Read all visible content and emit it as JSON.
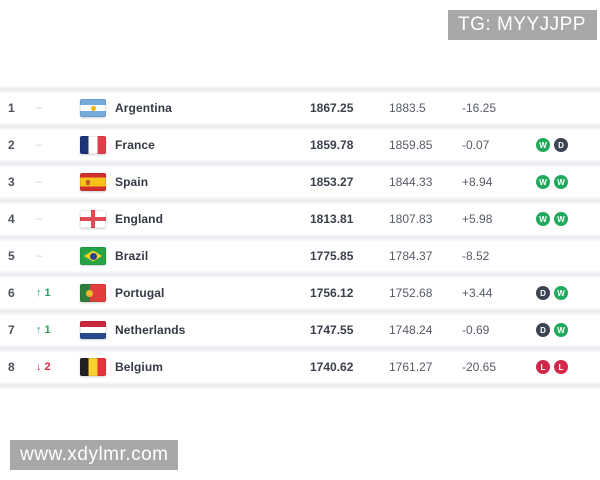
{
  "watermarks": {
    "top": "TG: MYYJJPP",
    "bottom": "www.xdylmr.com"
  },
  "colors": {
    "badge_win": "#22a95e",
    "badge_draw": "#3c4353",
    "badge_loss": "#d2294b",
    "move_up": "#27a05c",
    "move_down": "#cc2b47",
    "watermark_bg": "#a8a8a8"
  },
  "table": {
    "move_symbols": {
      "up": "↑",
      "down": "↓",
      "same": "–"
    },
    "rows": [
      {
        "rank": "1",
        "move": "same",
        "move_value": "",
        "flag": "argentina",
        "country": "Argentina",
        "points": "1867.25",
        "prev_points": "1883.5",
        "change": "-16.25",
        "form": []
      },
      {
        "rank": "2",
        "move": "same",
        "move_value": "",
        "flag": "france",
        "country": "France",
        "points": "1859.78",
        "prev_points": "1859.85",
        "change": "-0.07",
        "form": [
          "W",
          "D"
        ]
      },
      {
        "rank": "3",
        "move": "same",
        "move_value": "",
        "flag": "spain",
        "country": "Spain",
        "points": "1853.27",
        "prev_points": "1844.33",
        "change": "+8.94",
        "form": [
          "W",
          "W"
        ]
      },
      {
        "rank": "4",
        "move": "same",
        "move_value": "",
        "flag": "england",
        "country": "England",
        "points": "1813.81",
        "prev_points": "1807.83",
        "change": "+5.98",
        "form": [
          "W",
          "W"
        ]
      },
      {
        "rank": "5",
        "move": "same",
        "move_value": "",
        "flag": "brazil",
        "country": "Brazil",
        "points": "1775.85",
        "prev_points": "1784.37",
        "change": "-8.52",
        "form": []
      },
      {
        "rank": "6",
        "move": "up",
        "move_value": "1",
        "flag": "portugal",
        "country": "Portugal",
        "points": "1756.12",
        "prev_points": "1752.68",
        "change": "+3.44",
        "form": [
          "D",
          "W"
        ]
      },
      {
        "rank": "7",
        "move": "up",
        "move_value": "1",
        "flag": "netherlands",
        "country": "Netherlands",
        "points": "1747.55",
        "prev_points": "1748.24",
        "change": "-0.69",
        "form": [
          "D",
          "W"
        ]
      },
      {
        "rank": "8",
        "move": "down",
        "move_value": "2",
        "flag": "belgium",
        "country": "Belgium",
        "points": "1740.62",
        "prev_points": "1761.27",
        "change": "-20.65",
        "form": [
          "L",
          "L"
        ]
      }
    ]
  }
}
